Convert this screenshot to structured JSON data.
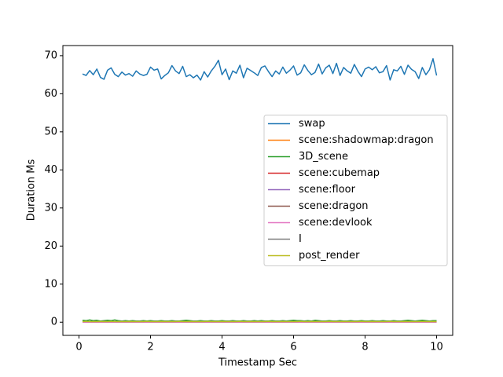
{
  "chart_data": {
    "type": "line",
    "xlabel": "Timestamp Sec",
    "ylabel": "Duration Ms",
    "x": [
      0.1,
      0.2,
      0.3,
      0.4,
      0.5,
      0.6,
      0.7,
      0.8,
      0.9,
      1.0,
      1.1,
      1.2,
      1.3,
      1.4,
      1.5,
      1.6,
      1.7,
      1.8,
      1.9,
      2.0,
      2.1,
      2.2,
      2.3,
      2.4,
      2.5,
      2.6,
      2.7,
      2.8,
      2.9,
      3.0,
      3.1,
      3.2,
      3.3,
      3.4,
      3.5,
      3.6,
      3.7,
      3.8,
      3.9,
      4.0,
      4.1,
      4.2,
      4.3,
      4.4,
      4.5,
      4.6,
      4.7,
      4.8,
      4.9,
      5.0,
      5.1,
      5.2,
      5.3,
      5.4,
      5.5,
      5.6,
      5.7,
      5.8,
      5.9,
      6.0,
      6.1,
      6.2,
      6.3,
      6.4,
      6.5,
      6.6,
      6.7,
      6.8,
      6.9,
      7.0,
      7.1,
      7.2,
      7.3,
      7.4,
      7.5,
      7.6,
      7.7,
      7.8,
      7.9,
      8.0,
      8.1,
      8.2,
      8.3,
      8.4,
      8.5,
      8.6,
      8.7,
      8.8,
      8.9,
      9.0,
      9.1,
      9.2,
      9.3,
      9.4,
      9.5,
      9.6,
      9.7,
      9.8,
      9.9,
      10.0
    ],
    "series": [
      {
        "name": "swap",
        "color": "#1f77b4",
        "values": [
          65.2,
          64.8,
          66.1,
          65.0,
          66.5,
          64.3,
          63.8,
          66.2,
          66.8,
          65.1,
          64.5,
          65.7,
          64.9,
          65.3,
          64.6,
          66.0,
          65.2,
          64.8,
          65.1,
          67.0,
          66.2,
          66.5,
          63.9,
          64.8,
          65.5,
          67.4,
          66.0,
          65.3,
          67.2,
          64.5,
          65.0,
          64.2,
          64.9,
          63.6,
          65.8,
          64.4,
          66.0,
          67.2,
          68.8,
          65.0,
          66.5,
          63.7,
          66.0,
          65.4,
          67.5,
          64.2,
          66.7,
          66.1,
          65.5,
          64.8,
          66.9,
          67.3,
          65.8,
          64.5,
          66.0,
          65.2,
          67.0,
          65.4,
          66.2,
          67.3,
          64.9,
          65.5,
          67.6,
          66.1,
          65.0,
          65.6,
          67.8,
          65.2,
          66.8,
          67.5,
          65.3,
          68.0,
          64.8,
          66.9,
          66.0,
          65.4,
          67.7,
          65.9,
          64.5,
          66.5,
          67.0,
          66.3,
          67.1,
          65.5,
          65.8,
          67.4,
          63.6,
          66.3,
          66.0,
          67.2,
          65.1,
          67.5,
          66.4,
          65.8,
          64.0,
          66.9,
          65.0,
          66.3,
          69.2,
          64.8
        ]
      },
      {
        "name": "scene:shadowmap:dragon",
        "color": "#ff7f0e",
        "values": [
          0.1,
          0.12,
          0.1,
          0.11,
          0.1,
          0.13,
          0.1,
          0.1,
          0.12,
          0.1,
          0.11,
          0.1,
          0.1,
          0.12,
          0.1,
          0.11,
          0.1,
          0.1,
          0.12,
          0.1,
          0.11,
          0.1,
          0.13,
          0.1,
          0.1,
          0.12,
          0.1,
          0.11,
          0.1,
          0.1,
          0.12,
          0.1,
          0.11,
          0.1,
          0.13,
          0.1,
          0.1,
          0.12,
          0.1,
          0.11,
          0.1,
          0.1,
          0.12,
          0.1,
          0.11,
          0.1,
          0.13,
          0.1,
          0.1,
          0.12,
          0.1,
          0.11,
          0.1,
          0.1,
          0.12,
          0.1,
          0.11,
          0.1,
          0.13,
          0.1,
          0.1,
          0.12,
          0.1,
          0.11,
          0.1,
          0.1,
          0.12,
          0.1,
          0.11,
          0.1,
          0.13,
          0.1,
          0.1,
          0.12,
          0.1,
          0.11,
          0.1,
          0.1,
          0.12,
          0.1,
          0.11,
          0.1,
          0.13,
          0.1,
          0.1,
          0.12,
          0.1,
          0.11,
          0.1,
          0.1,
          0.12,
          0.1,
          0.11,
          0.1,
          0.13,
          0.1,
          0.1,
          0.12,
          0.1,
          0.11
        ]
      },
      {
        "name": "3D_scene",
        "color": "#2ca02c",
        "values": [
          0.5,
          0.4,
          0.6,
          0.4,
          0.5,
          0.3,
          0.4,
          0.5,
          0.4,
          0.6,
          0.4,
          0.3,
          0.4,
          0.3,
          0.4,
          0.3,
          0.3,
          0.4,
          0.3,
          0.4,
          0.3,
          0.3,
          0.4,
          0.3,
          0.3,
          0.4,
          0.3,
          0.3,
          0.4,
          0.5,
          0.4,
          0.3,
          0.3,
          0.4,
          0.3,
          0.3,
          0.4,
          0.3,
          0.3,
          0.4,
          0.3,
          0.3,
          0.4,
          0.3,
          0.3,
          0.4,
          0.3,
          0.3,
          0.4,
          0.3,
          0.4,
          0.3,
          0.3,
          0.4,
          0.3,
          0.3,
          0.4,
          0.3,
          0.4,
          0.5,
          0.4,
          0.4,
          0.3,
          0.4,
          0.3,
          0.5,
          0.4,
          0.3,
          0.3,
          0.4,
          0.3,
          0.3,
          0.4,
          0.3,
          0.3,
          0.4,
          0.3,
          0.3,
          0.4,
          0.3,
          0.3,
          0.4,
          0.3,
          0.3,
          0.4,
          0.3,
          0.3,
          0.4,
          0.3,
          0.3,
          0.4,
          0.5,
          0.4,
          0.3,
          0.4,
          0.5,
          0.4,
          0.3,
          0.4,
          0.4
        ]
      },
      {
        "name": "scene:cubemap",
        "color": "#d62728",
        "values": [
          0.05,
          0.06,
          0.05,
          0.05,
          0.06,
          0.05,
          0.05,
          0.06,
          0.05,
          0.05,
          0.06,
          0.05,
          0.05,
          0.06,
          0.05,
          0.05,
          0.06,
          0.05,
          0.05,
          0.06,
          0.05,
          0.05,
          0.06,
          0.05,
          0.05,
          0.06,
          0.05,
          0.05,
          0.06,
          0.05,
          0.05,
          0.06,
          0.05,
          0.05,
          0.06,
          0.05,
          0.05,
          0.06,
          0.05,
          0.05,
          0.06,
          0.05,
          0.05,
          0.06,
          0.05,
          0.05,
          0.06,
          0.05,
          0.05,
          0.06,
          0.05,
          0.05,
          0.06,
          0.05,
          0.05,
          0.06,
          0.05,
          0.05,
          0.06,
          0.05,
          0.05,
          0.06,
          0.05,
          0.05,
          0.06,
          0.05,
          0.05,
          0.06,
          0.05,
          0.05,
          0.06,
          0.05,
          0.05,
          0.06,
          0.05,
          0.05,
          0.06,
          0.05,
          0.05,
          0.06,
          0.05,
          0.05,
          0.06,
          0.05,
          0.05,
          0.06,
          0.05,
          0.05,
          0.06,
          0.05,
          0.05,
          0.06,
          0.05,
          0.05,
          0.06,
          0.05,
          0.05,
          0.06,
          0.05,
          0.05
        ]
      },
      {
        "name": "scene:floor",
        "color": "#9467bd",
        "values": [
          0.04,
          0.05,
          0.04,
          0.04,
          0.05,
          0.04,
          0.04,
          0.05,
          0.04,
          0.04,
          0.05,
          0.04,
          0.04,
          0.05,
          0.04,
          0.04,
          0.05,
          0.04,
          0.04,
          0.05,
          0.04,
          0.04,
          0.05,
          0.04,
          0.04,
          0.05,
          0.04,
          0.04,
          0.05,
          0.04,
          0.04,
          0.05,
          0.04,
          0.04,
          0.05,
          0.04,
          0.04,
          0.05,
          0.04,
          0.04,
          0.05,
          0.04,
          0.04,
          0.05,
          0.04,
          0.04,
          0.05,
          0.04,
          0.04,
          0.05,
          0.04,
          0.04,
          0.05,
          0.04,
          0.04,
          0.05,
          0.04,
          0.04,
          0.05,
          0.04,
          0.04,
          0.05,
          0.04,
          0.04,
          0.05,
          0.04,
          0.04,
          0.05,
          0.04,
          0.04,
          0.05,
          0.04,
          0.04,
          0.05,
          0.04,
          0.04,
          0.05,
          0.04,
          0.04,
          0.05,
          0.04,
          0.04,
          0.05,
          0.04,
          0.04,
          0.05,
          0.04,
          0.04,
          0.05,
          0.04,
          0.04,
          0.05,
          0.04,
          0.04,
          0.05,
          0.04,
          0.04,
          0.05,
          0.04,
          0.04
        ]
      },
      {
        "name": "scene:dragon",
        "color": "#8c564b",
        "values": [
          0.1,
          0.11,
          0.1,
          0.1,
          0.12,
          0.1,
          0.1,
          0.11,
          0.1,
          0.1,
          0.12,
          0.1,
          0.1,
          0.11,
          0.1,
          0.1,
          0.12,
          0.1,
          0.1,
          0.11,
          0.1,
          0.1,
          0.12,
          0.1,
          0.1,
          0.11,
          0.1,
          0.1,
          0.12,
          0.1,
          0.1,
          0.11,
          0.1,
          0.1,
          0.12,
          0.1,
          0.1,
          0.11,
          0.1,
          0.1,
          0.12,
          0.1,
          0.1,
          0.11,
          0.1,
          0.1,
          0.12,
          0.1,
          0.1,
          0.11,
          0.1,
          0.1,
          0.12,
          0.1,
          0.1,
          0.11,
          0.1,
          0.1,
          0.12,
          0.1,
          0.1,
          0.11,
          0.1,
          0.1,
          0.12,
          0.1,
          0.1,
          0.11,
          0.1,
          0.1,
          0.12,
          0.1,
          0.1,
          0.11,
          0.1,
          0.1,
          0.12,
          0.1,
          0.1,
          0.11,
          0.1,
          0.1,
          0.12,
          0.1,
          0.1,
          0.11,
          0.1,
          0.1,
          0.12,
          0.1,
          0.1,
          0.11,
          0.1,
          0.1,
          0.12,
          0.1,
          0.1,
          0.11,
          0.1,
          0.1
        ]
      },
      {
        "name": "scene:devlook",
        "color": "#e377c2",
        "values": [
          0.02,
          0.02,
          0.03,
          0.02,
          0.02,
          0.02,
          0.03,
          0.02,
          0.02,
          0.02,
          0.03,
          0.02,
          0.02,
          0.02,
          0.03,
          0.02,
          0.02,
          0.02,
          0.03,
          0.02,
          0.02,
          0.02,
          0.03,
          0.02,
          0.02,
          0.02,
          0.03,
          0.02,
          0.02,
          0.02,
          0.03,
          0.02,
          0.02,
          0.02,
          0.03,
          0.02,
          0.02,
          0.02,
          0.03,
          0.02,
          0.02,
          0.02,
          0.03,
          0.02,
          0.02,
          0.02,
          0.03,
          0.02,
          0.02,
          0.02,
          0.03,
          0.02,
          0.02,
          0.02,
          0.03,
          0.02,
          0.02,
          0.02,
          0.03,
          0.02,
          0.02,
          0.02,
          0.03,
          0.02,
          0.02,
          0.02,
          0.03,
          0.02,
          0.02,
          0.02,
          0.03,
          0.02,
          0.02,
          0.02,
          0.03,
          0.02,
          0.02,
          0.02,
          0.03,
          0.02,
          0.02,
          0.02,
          0.03,
          0.02,
          0.02,
          0.02,
          0.03,
          0.02,
          0.02,
          0.02,
          0.03,
          0.02,
          0.02,
          0.02,
          0.03,
          0.02,
          0.02,
          0.02,
          0.03,
          0.02
        ]
      },
      {
        "name": "I",
        "color": "#7f7f7f",
        "values": [
          0.2,
          0.22,
          0.2,
          0.21,
          0.2,
          0.2,
          0.23,
          0.2,
          0.21,
          0.2,
          0.2,
          0.22,
          0.2,
          0.21,
          0.2,
          0.2,
          0.23,
          0.2,
          0.21,
          0.2,
          0.2,
          0.22,
          0.2,
          0.21,
          0.2,
          0.2,
          0.23,
          0.2,
          0.21,
          0.2,
          0.2,
          0.22,
          0.2,
          0.21,
          0.2,
          0.2,
          0.23,
          0.2,
          0.21,
          0.2,
          0.2,
          0.22,
          0.2,
          0.21,
          0.2,
          0.2,
          0.23,
          0.2,
          0.21,
          0.2,
          0.2,
          0.22,
          0.2,
          0.21,
          0.2,
          0.2,
          0.23,
          0.2,
          0.21,
          0.2,
          0.2,
          0.22,
          0.2,
          0.21,
          0.2,
          0.2,
          0.23,
          0.2,
          0.21,
          0.2,
          0.2,
          0.22,
          0.2,
          0.21,
          0.2,
          0.2,
          0.23,
          0.2,
          0.21,
          0.2,
          0.2,
          0.22,
          0.2,
          0.21,
          0.2,
          0.2,
          0.23,
          0.2,
          0.21,
          0.2,
          0.2,
          0.22,
          0.2,
          0.21,
          0.2,
          0.2,
          0.23,
          0.2,
          0.21,
          0.2
        ]
      },
      {
        "name": "post_render",
        "color": "#bcbd22",
        "values": [
          0.15,
          0.2,
          0.15,
          0.16,
          0.15,
          0.18,
          0.15,
          0.15,
          0.2,
          0.15,
          0.16,
          0.15,
          0.15,
          0.18,
          0.15,
          0.16,
          0.15,
          0.15,
          0.2,
          0.15,
          0.16,
          0.15,
          0.18,
          0.15,
          0.15,
          0.16,
          0.15,
          0.2,
          0.15,
          0.15,
          0.18,
          0.15,
          0.16,
          0.15,
          0.15,
          0.2,
          0.15,
          0.16,
          0.15,
          0.18,
          0.15,
          0.15,
          0.16,
          0.15,
          0.2,
          0.15,
          0.15,
          0.18,
          0.15,
          0.16,
          0.15,
          0.15,
          0.2,
          0.15,
          0.16,
          0.15,
          0.18,
          0.15,
          0.15,
          0.16,
          0.15,
          0.2,
          0.15,
          0.15,
          0.18,
          0.15,
          0.16,
          0.15,
          0.15,
          0.2,
          0.15,
          0.16,
          0.15,
          0.18,
          0.15,
          0.15,
          0.16,
          0.15,
          0.2,
          0.15,
          0.15,
          0.18,
          0.15,
          0.16,
          0.15,
          0.15,
          0.2,
          0.15,
          0.16,
          0.15,
          0.18,
          0.15,
          0.15,
          0.16,
          0.15,
          0.2,
          0.15,
          0.15,
          0.18,
          0.15
        ]
      }
    ],
    "xlim": [
      -0.45,
      10.45
    ],
    "ylim": [
      -3.46,
      72.66
    ],
    "xticks": [
      0,
      2,
      4,
      6,
      8,
      10
    ],
    "yticks": [
      0,
      10,
      20,
      30,
      40,
      50,
      60,
      70
    ],
    "legend": "center right"
  }
}
